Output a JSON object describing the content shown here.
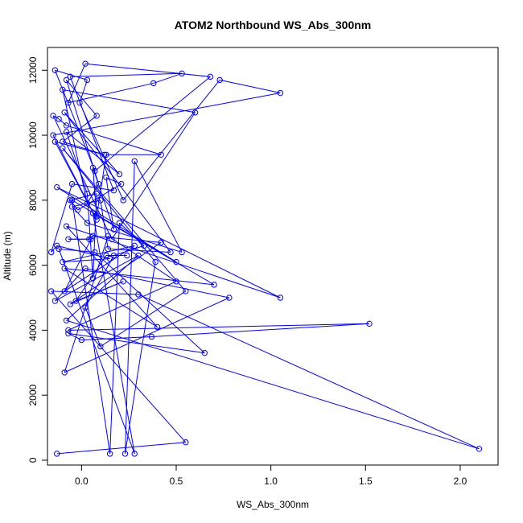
{
  "chart_data": {
    "type": "line",
    "title": "ATOM2 Northbound WS_Abs_300nm",
    "xlabel": "WS_Abs_300nm",
    "ylabel": "Altitude (m)",
    "xlim": [
      -0.18,
      2.2
    ],
    "ylim": [
      -150,
      12700
    ],
    "x_ticks": [
      0.0,
      0.5,
      1.0,
      1.5,
      2.0
    ],
    "x_tick_labels": [
      "0.0",
      "0.5",
      "1.0",
      "1.5",
      "2.0"
    ],
    "y_ticks": [
      0,
      2000,
      4000,
      6000,
      8000,
      10000,
      12000
    ],
    "y_tick_labels": [
      "0",
      "2000",
      "4000",
      "6000",
      "8000",
      "10000",
      "12000"
    ],
    "grid": false,
    "series_color": "#0000ff",
    "marker": "open-circle",
    "series": [
      {
        "x": [
          -0.13,
          0.55,
          -0.16,
          0.3,
          2.1,
          -0.08,
          0.3,
          -0.14,
          0.02,
          0.78,
          -0.09,
          0.14,
          0.5,
          -0.07,
          1.52,
          0.37,
          0.0,
          -0.07,
          0.65,
          0.07,
          -0.12,
          0.28,
          0.06,
          0.7,
          -0.09,
          0.4,
          -0.08,
          1.05,
          -0.13,
          0.5,
          -0.05,
          0.15,
          0.2,
          0.33,
          0.17,
          0.02,
          0.1,
          0.55,
          -0.1,
          0.39,
          0.23,
          0.28,
          0.53,
          0.03,
          -0.05,
          0.1,
          0.14,
          0.47,
          -0.09,
          0.2,
          -0.08,
          0.03,
          0.06,
          0.08,
          -0.06,
          -0.02,
          0.21,
          0.13,
          0.17,
          0.06,
          0.08,
          0.13,
          0.42,
          -0.08,
          -0.12,
          -0.15,
          0.16,
          0.6,
          -0.1,
          0.03,
          0.09,
          -0.08,
          0.08,
          -0.1,
          0.12,
          -0.14,
          0.08,
          -0.15,
          1.05,
          0.73,
          0.22,
          -0.01,
          0.03,
          -0.14,
          0.07,
          0.68,
          0.02,
          -0.07,
          0.38,
          0.53,
          -0.06,
          0.17,
          -0.05,
          -0.16,
          -0.13,
          0.15,
          -0.1,
          0.28,
          -0.09,
          0.05,
          -0.07,
          0.04,
          0.06,
          0.42,
          -0.06,
          0.22,
          -0.03,
          0.13,
          0.24
        ],
        "y": [
          200,
          550,
          5200,
          5100,
          350,
          4300,
          6300,
          4900,
          5900,
          5000,
          2700,
          6900,
          5500,
          4000,
          4200,
          3800,
          3700,
          3900,
          3300,
          6400,
          6500,
          200,
          7600,
          5400,
          5900,
          4100,
          7200,
          5000,
          8400,
          6100,
          8000,
          200,
          7300,
          6600,
          6300,
          4700,
          3500,
          5200,
          9600,
          6100,
          200,
          9200,
          6400,
          7300,
          7800,
          8000,
          6500,
          6400,
          10700,
          8800,
          10100,
          8200,
          5600,
          8200,
          8000,
          7700,
          8500,
          8700,
          7100,
          9000,
          7500,
          9400,
          9400,
          10300,
          10500,
          10600,
          6800,
          10700,
          11400,
          7900,
          8500,
          11700,
          10600,
          9800,
          9400,
          9800,
          7400,
          10000,
          11300,
          11700,
          8000,
          11000,
          11700,
          12000,
          8900,
          11800,
          12200,
          11000,
          11600,
          11900,
          11800,
          8300,
          8500,
          6400,
          6600,
          6200,
          6100,
          6600,
          5200,
          6800,
          6800,
          6800,
          6900,
          6700,
          4800,
          5500,
          4900,
          6300,
          6300
        ]
      }
    ]
  }
}
